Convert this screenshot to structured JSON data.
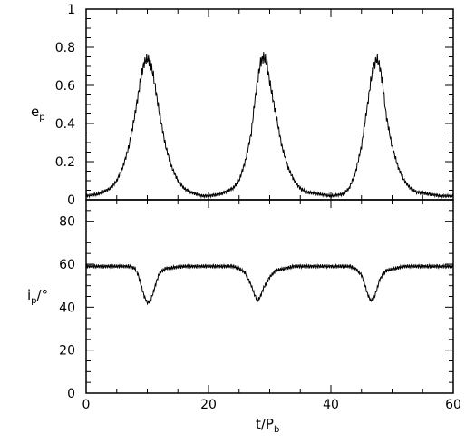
{
  "chart_data": [
    {
      "type": "line",
      "panel": "top",
      "ylabel": "e",
      "ylabel_sub": "p",
      "xlim": [
        0,
        60
      ],
      "ylim": [
        0,
        1
      ],
      "x_ticks": [
        0,
        20,
        40,
        60
      ],
      "y_ticks": [
        0,
        0.2,
        0.4,
        0.6,
        0.8,
        1
      ],
      "y_tick_labels": [
        "0",
        "0.2",
        "0.4",
        "0.6",
        "0.8",
        "1"
      ],
      "grid": false,
      "series": [
        {
          "x": [
            0,
            2,
            4,
            5,
            6,
            7,
            8,
            8.5,
            9,
            9.5,
            10,
            10.5,
            11,
            11.5,
            12,
            13,
            14,
            15,
            16,
            17,
            18,
            19,
            20,
            22,
            24,
            25,
            26,
            27,
            27.5,
            28,
            28.5,
            29,
            29.5,
            30,
            31,
            32,
            33,
            34,
            35,
            36,
            38,
            40,
            42,
            43,
            44,
            45,
            46,
            46.5,
            47,
            47.5,
            48,
            48.5,
            49,
            50,
            51,
            52,
            53,
            54,
            56,
            58,
            60
          ],
          "y": [
            0.02,
            0.03,
            0.06,
            0.1,
            0.17,
            0.28,
            0.45,
            0.55,
            0.65,
            0.72,
            0.74,
            0.72,
            0.65,
            0.55,
            0.45,
            0.28,
            0.17,
            0.1,
            0.06,
            0.04,
            0.03,
            0.02,
            0.02,
            0.03,
            0.06,
            0.1,
            0.2,
            0.35,
            0.5,
            0.62,
            0.72,
            0.75,
            0.72,
            0.62,
            0.45,
            0.28,
            0.17,
            0.1,
            0.06,
            0.04,
            0.03,
            0.02,
            0.03,
            0.06,
            0.14,
            0.28,
            0.5,
            0.62,
            0.7,
            0.74,
            0.7,
            0.6,
            0.45,
            0.28,
            0.17,
            0.1,
            0.06,
            0.04,
            0.03,
            0.02,
            0.02
          ]
        }
      ]
    },
    {
      "type": "line",
      "panel": "bottom",
      "ylabel": "i",
      "ylabel_sub": "p",
      "ylabel_suffix": "/°",
      "xlabel": "t/P",
      "xlabel_sub": "b",
      "xlim": [
        0,
        60
      ],
      "ylim": [
        0,
        90
      ],
      "x_ticks": [
        0,
        20,
        40,
        60
      ],
      "y_ticks": [
        0,
        20,
        40,
        60,
        80
      ],
      "grid": false,
      "series": [
        {
          "x": [
            0,
            4,
            7,
            8,
            8.5,
            9,
            9.5,
            10,
            10.5,
            11,
            11.5,
            12,
            13,
            16,
            20,
            24,
            25,
            26,
            26.5,
            27,
            27.5,
            28,
            28.5,
            29,
            30,
            31,
            34,
            40,
            43,
            44,
            45,
            45.5,
            46,
            46.5,
            47,
            47.5,
            48,
            49,
            52,
            56,
            60
          ],
          "y": [
            59,
            59,
            59,
            58,
            55,
            50,
            45,
            42,
            43,
            47,
            52,
            56,
            58,
            59,
            59,
            59,
            58,
            56,
            53,
            50,
            46,
            43,
            45,
            49,
            54,
            57,
            59,
            59,
            59,
            58,
            55,
            51,
            46,
            43,
            44,
            48,
            53,
            57,
            59,
            59,
            59
          ]
        }
      ]
    }
  ]
}
